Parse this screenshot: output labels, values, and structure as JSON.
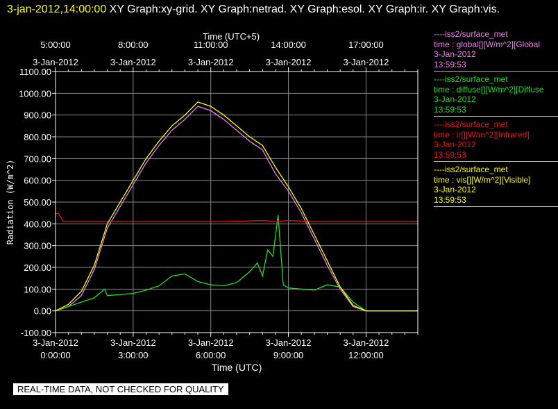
{
  "header": {
    "timestamp": "3-jan-2012,14:00:00",
    "title": " XY Graph:xy-grid.  XY Graph:netrad.  XY Graph:esol.  XY Graph:ir.  XY Graph:vis."
  },
  "banner": "REAL-TIME DATA, NOT CHECKED FOR QUALITY",
  "legend": [
    {
      "color": "#ee82ee",
      "line": "----iss2/surface_met",
      "label": "time : global[][W/m^2][Global",
      "date": "3-Jan-2012",
      "time": "13:59:53"
    },
    {
      "color": "#22dd22",
      "line": "----iss2/surface_met",
      "label": "time : diffuse[][W/m^2][Diffuse",
      "date": "3-Jan-2012",
      "time": "13:59:53"
    },
    {
      "color": "#ee1111",
      "line": "----iss2/surface_met",
      "label": "time : ir[][W/m^2][Infrared]",
      "date": "3-Jan-2012",
      "time": "13:59:53"
    },
    {
      "color": "#ffff00",
      "line": "----iss2/surface_met",
      "label": "time : vis[][W/m^2][Visible]",
      "date": "3-Jan-2012",
      "time": "13:59:53"
    }
  ],
  "chart_data": {
    "type": "line",
    "xlabel": "Time (UTC)",
    "x2label": "Time (UTC+5)",
    "ylabel": "Radiation (W/m^2)",
    "xlim": [
      0,
      14
    ],
    "ylim": [
      -100,
      1100
    ],
    "yticks": [
      -100,
      0,
      100,
      200,
      300,
      400,
      500,
      600,
      700,
      800,
      900,
      1000,
      1100
    ],
    "ytick_labels": [
      "-100.00",
      "0.00",
      "100.00",
      "200.00",
      "300.00",
      "400.00",
      "500.00",
      "600.00",
      "700.00",
      "800.00",
      "900.00",
      "1000.00",
      "1100.00"
    ],
    "xticks": [
      0,
      3,
      6,
      9,
      12
    ],
    "xtick_dates": [
      "3-Jan-2012",
      "3-Jan-2012",
      "3-Jan-2012",
      "3-Jan-2012",
      "3-Jan-2012"
    ],
    "xtick_times": [
      "0:00:00",
      "3:00:00",
      "6:00:00",
      "9:00:00",
      "12:00:00"
    ],
    "x2tick_dates": [
      "3-Jan-2012",
      "3-Jan-2012",
      "3-Jan-2012",
      "3-Jan-2012",
      "3-Jan-2012"
    ],
    "x2tick_times": [
      "5:00:00",
      "8:00:00",
      "11:00:00",
      "14:00:00",
      "17:00:00"
    ],
    "grid": true,
    "series": [
      {
        "color": "#ee82ee",
        "x": [
          0,
          0.5,
          1,
          1.5,
          2,
          2.5,
          3,
          3.5,
          4,
          4.5,
          5,
          5.5,
          6,
          6.5,
          7,
          7.5,
          8,
          8.5,
          9,
          9.5,
          10,
          10.5,
          11,
          11.5,
          12,
          12.5,
          13,
          14
        ],
        "y": [
          0,
          20,
          70,
          190,
          380,
          480,
          580,
          680,
          760,
          830,
          880,
          940,
          920,
          880,
          830,
          780,
          740,
          630,
          550,
          450,
          330,
          210,
          100,
          20,
          0,
          0,
          0,
          0
        ]
      },
      {
        "color": "#22dd22",
        "x": [
          0,
          0.5,
          1,
          1.5,
          1.9,
          2,
          2.5,
          3,
          3.5,
          4,
          4.5,
          5,
          5.5,
          6,
          6.5,
          7,
          7.5,
          7.8,
          8,
          8.2,
          8.4,
          8.6,
          8.8,
          9,
          9.5,
          10,
          10.5,
          11,
          11.5,
          12,
          12.5,
          13,
          14
        ],
        "y": [
          0,
          20,
          40,
          60,
          100,
          70,
          75,
          80,
          95,
          115,
          160,
          170,
          135,
          120,
          115,
          130,
          180,
          220,
          160,
          280,
          250,
          440,
          120,
          105,
          100,
          95,
          120,
          110,
          40,
          0,
          0,
          0,
          0
        ]
      },
      {
        "color": "#ee1111",
        "x": [
          0,
          0.1,
          0.2,
          0.3,
          0.5,
          1,
          2,
          3,
          4,
          5,
          6,
          7,
          8,
          8.5,
          9,
          10,
          11,
          12,
          13,
          14
        ],
        "y": [
          445,
          450,
          430,
          410,
          410,
          410,
          410,
          410,
          410,
          410,
          410,
          412,
          415,
          410,
          415,
          410,
          410,
          410,
          410,
          410
        ]
      },
      {
        "color": "#ffff00",
        "x": [
          0,
          0.5,
          1,
          1.5,
          2,
          2.5,
          3,
          3.5,
          4,
          4.5,
          5,
          5.5,
          6,
          6.5,
          7,
          7.5,
          8,
          8.5,
          9,
          9.5,
          10,
          10.5,
          11,
          11.5,
          12,
          12.5,
          13,
          14
        ],
        "y": [
          0,
          30,
          90,
          210,
          400,
          500,
          600,
          700,
          780,
          850,
          900,
          960,
          940,
          900,
          850,
          800,
          760,
          660,
          570,
          470,
          350,
          230,
          110,
          25,
          0,
          0,
          0,
          0
        ]
      }
    ]
  }
}
